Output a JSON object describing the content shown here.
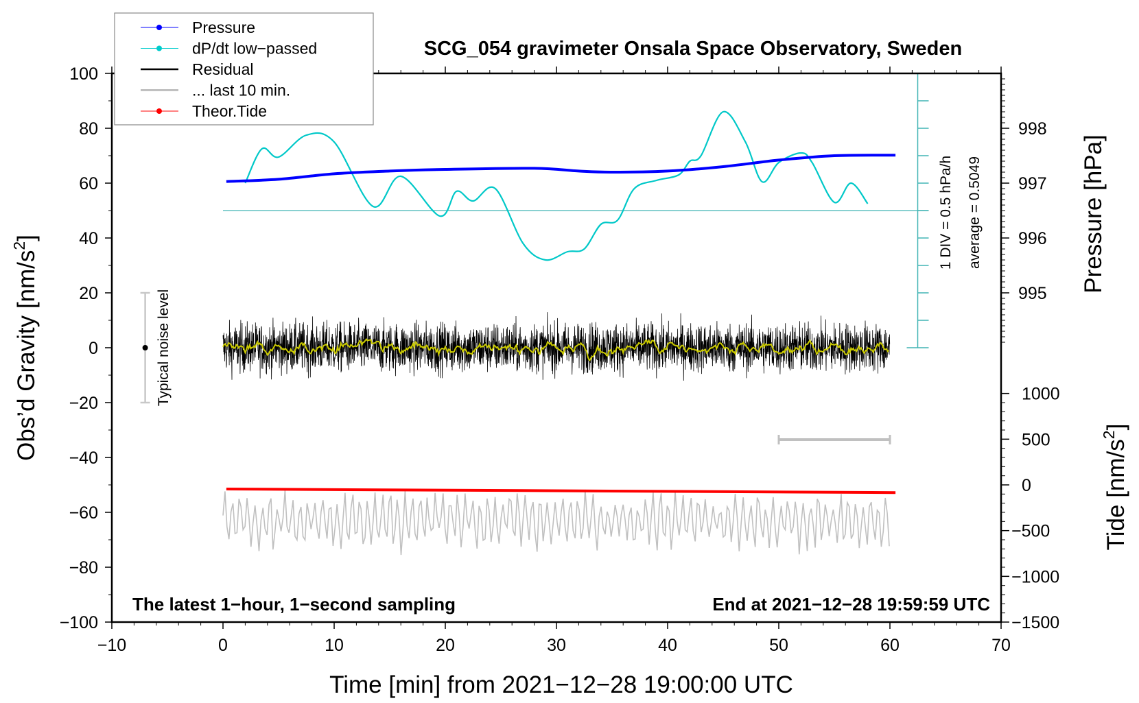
{
  "chart_data": {
    "type": "line",
    "title": "SCG_054 gravimeter Onsala Space Observatory, Sweden",
    "xlabel": "Time [min] from 2021−12−28 19:00:00 UTC",
    "ylabel": "Obs’d Gravity [nm/s²]",
    "ylabel_main": "Obs’d Gravity [nm/s",
    "ylabel_sup": "2",
    "ylabel_end": "]",
    "y2label": "Pressure [hPa]",
    "y3label_main": "Tide [nm/s",
    "y3label_sup": "2",
    "y3label_end": "]",
    "xlim": [
      -10,
      70
    ],
    "ylim": [
      -100,
      100
    ],
    "xticks": [
      -10,
      0,
      10,
      20,
      30,
      40,
      50,
      60,
      70
    ],
    "xtick_labels": [
      "−10",
      "0",
      "10",
      "20",
      "30",
      "40",
      "50",
      "60",
      "70"
    ],
    "yticks": [
      100,
      80,
      60,
      40,
      20,
      0,
      -20,
      -40,
      -60,
      -80,
      -100
    ],
    "ytick_labels": [
      "100",
      "80",
      "60",
      "40",
      "20",
      "0",
      "−20",
      "−40",
      "−60",
      "−80",
      "−100"
    ],
    "pressure_ticks": [
      998,
      997,
      996,
      995
    ],
    "pressure_tick_labels": [
      "998",
      "997",
      "996",
      "995"
    ],
    "tide_ticks": [
      1000,
      500,
      0,
      -500,
      -1000,
      -1500
    ],
    "tide_tick_labels": [
      "1000",
      "500",
      "0",
      "−500",
      "−1000",
      "−1500"
    ],
    "legend": {
      "position": "top-left",
      "entries": [
        {
          "label": "Pressure",
          "color": "#0000ff",
          "marker": true
        },
        {
          "label": "dP/dt low−passed",
          "color": "#00cccc",
          "marker": true
        },
        {
          "label": "Residual",
          "color": "#000000",
          "marker": false
        },
        {
          "label": "... last 10 min.",
          "color": "#c0c0c0",
          "marker": false
        },
        {
          "label": "Theor.Tide",
          "color": "#ff0000",
          "marker": true
        }
      ]
    },
    "annotations": {
      "bottom_left": "The latest 1−hour, 1−second sampling",
      "bottom_right": "End at 2021−12−28 19:59:59 UTC",
      "div_scale": "1 DIV = 0.5 hPa/h",
      "average": "average = 0.5049",
      "noise_label": "Typical noise level"
    },
    "noise_level": {
      "x": -7,
      "range": [
        -20,
        20
      ]
    },
    "last10_bar": {
      "x": [
        50,
        60
      ],
      "y": -33.5
    },
    "pressure_hpa": {
      "t": [
        0.3,
        5,
        10,
        15,
        20,
        28,
        32,
        35,
        40,
        45,
        50,
        55,
        60.5
      ],
      "v": [
        997.03,
        997.07,
        997.17,
        997.22,
        997.25,
        997.27,
        997.22,
        997.2,
        997.22,
        997.3,
        997.42,
        997.5,
        997.51
      ]
    },
    "dpdt_plot_units": {
      "t": [
        2,
        3.5,
        5,
        7.5,
        10,
        13.5,
        16,
        19.5,
        21,
        22.5,
        24.5,
        27,
        29,
        31,
        32.5,
        34,
        35.5,
        37,
        39,
        41,
        42,
        43,
        45,
        47,
        48.5,
        50,
        52,
        53,
        55,
        56.5,
        58
      ],
      "v": [
        60,
        72.5,
        69.5,
        77.5,
        75,
        51.5,
        62.5,
        48,
        57,
        53.5,
        58,
        38,
        32,
        35,
        36,
        45,
        46.5,
        58,
        61,
        63,
        68,
        70,
        86,
        75,
        60.5,
        67.5,
        71,
        67.5,
        53,
        60,
        52.5
      ]
    },
    "dpdt_axis": {
      "baseline": 50,
      "x": 62.5,
      "range": [
        0,
        100
      ],
      "div": 10
    },
    "theor_tide_nms2": {
      "t": [
        0.3,
        60.5
      ],
      "v": [
        -45,
        -84
      ]
    },
    "residual": {
      "t_range": [
        0,
        60
      ],
      "amplitude": 10,
      "center": 0
    },
    "last10_trace": {
      "t_range": [
        0,
        60
      ],
      "center": -63,
      "amplitude": 11
    },
    "colors": {
      "pressure": "#0000ff",
      "dpdt": "#00c8c8",
      "dpdt_axis": "#40b4b4",
      "residual": "#000000",
      "smooth": "#cccc00",
      "last10": "#c0c0c0",
      "tide": "#ff0000"
    }
  }
}
